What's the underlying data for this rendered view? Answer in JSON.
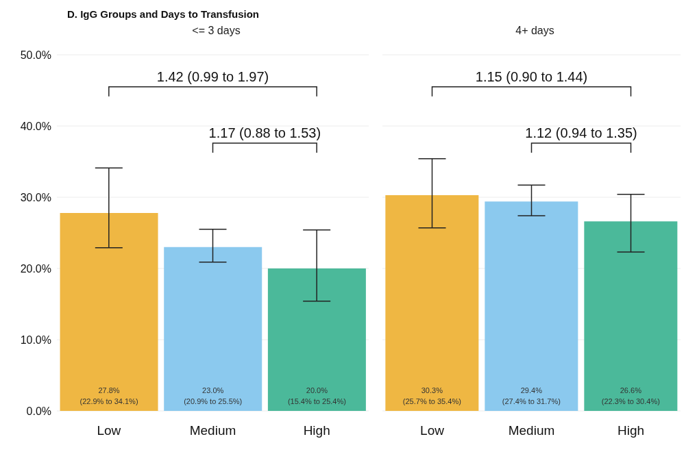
{
  "chart_data": [
    {
      "type": "bar",
      "title": "D. IgG Groups and Days to Transfusion",
      "subtitle": "<= 3 days",
      "categories": [
        "Low",
        "Medium",
        "High"
      ],
      "values": [
        27.8,
        23.0,
        20.0
      ],
      "colors": [
        "#efb743",
        "#8bc9ee",
        "#4bb99a"
      ],
      "errors": [
        [
          22.9,
          34.1
        ],
        [
          20.9,
          25.5
        ],
        [
          15.4,
          25.4
        ]
      ],
      "value_labels": [
        "27.8%\n(22.9% to 34.1%)",
        "23.0%\n(20.9% to 25.5%)",
        "20.0%\n(15.4% to 25.4%)"
      ],
      "annotations": [
        "1.42 (0.99 to 1.97)",
        "1.17 (0.88 to 1.53)"
      ],
      "ylim": [
        0,
        50
      ],
      "yticks": [
        {
          "value": 0,
          "label": "0.0%"
        },
        {
          "value": 10,
          "label": "10.0%"
        },
        {
          "value": 20,
          "label": "20.0%"
        },
        {
          "value": 30,
          "label": "30.0%"
        },
        {
          "value": 40,
          "label": "40.0%"
        },
        {
          "value": 50,
          "label": "50.0%"
        }
      ],
      "grid": "y",
      "legend": false
    },
    {
      "type": "bar",
      "subtitle": "4+ days",
      "categories": [
        "Low",
        "Medium",
        "High"
      ],
      "values": [
        30.3,
        29.4,
        26.6
      ],
      "colors": [
        "#efb743",
        "#8bc9ee",
        "#4bb99a"
      ],
      "errors": [
        [
          25.7,
          35.4
        ],
        [
          27.4,
          31.7
        ],
        [
          22.3,
          30.4
        ]
      ],
      "value_labels": [
        "30.3%\n(25.7% to 35.4%)",
        "29.4%\n(27.4% to 31.7%)",
        "26.6%\n(22.3% to 30.4%)"
      ],
      "annotations": [
        "1.15 (0.90 to 1.44)",
        "1.12 (0.94 to 1.35)"
      ],
      "ylim": [
        0,
        50
      ],
      "yticks": [
        0,
        10,
        20,
        30,
        40,
        50
      ],
      "grid": "y",
      "legend": false,
      "tick_labels": "x"
    }
  ]
}
